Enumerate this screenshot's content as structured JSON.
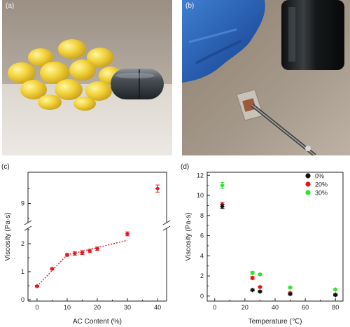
{
  "panels": {
    "a": {
      "label": "(a)"
    },
    "b": {
      "label": "(b)"
    },
    "c": {
      "label": "(c)"
    },
    "d": {
      "label": "(d)"
    }
  },
  "colors": {
    "red": "#e8141c",
    "black": "#111111",
    "green": "#2ee22e",
    "axis": "#222222"
  },
  "chart_data": [
    {
      "type": "scatter",
      "panel": "c",
      "xlabel": "AC Content (%)",
      "ylabel": "Viscosity (Pa·s)",
      "xlim": [
        -3,
        43
      ],
      "ylim_lower": [
        0,
        2.5
      ],
      "ylim_upper": [
        8.4,
        10
      ],
      "axis_break": true,
      "x_ticks": [
        "0",
        "10",
        "20",
        "30",
        "40"
      ],
      "y_ticks_lower": [
        "0",
        "1",
        "2"
      ],
      "y_ticks_upper": [
        "9"
      ],
      "series": [
        {
          "x": [
            0,
            5,
            10,
            12.5,
            15,
            17.5,
            20,
            30,
            40
          ],
          "y": [
            0.48,
            1.1,
            1.6,
            1.65,
            1.68,
            1.74,
            1.82,
            2.35,
            9.5
          ],
          "err": [
            0.03,
            0.04,
            0.05,
            0.06,
            0.07,
            0.06,
            0.06,
            0.07,
            0.12
          ]
        }
      ],
      "fit_lines": [
        {
          "x": [
            0,
            10
          ],
          "y": [
            0.48,
            1.6
          ]
        },
        {
          "x": [
            10,
            30
          ],
          "y": [
            1.6,
            2.12
          ]
        }
      ]
    },
    {
      "type": "scatter",
      "panel": "d",
      "xlabel": "Temperature (℃)",
      "ylabel": "Viscosity (Pa·s)",
      "xlim": [
        -5,
        85
      ],
      "ylim": [
        -0.5,
        12.3
      ],
      "x_ticks": [
        "0",
        "20",
        "40",
        "60",
        "80"
      ],
      "y_ticks": [
        "0",
        "2",
        "4",
        "6",
        "8",
        "10",
        "12"
      ],
      "legend_position": "top-right",
      "series": [
        {
          "name": "0%",
          "x": [
            5,
            25,
            30,
            50,
            80
          ],
          "y": [
            8.9,
            0.6,
            0.45,
            0.2,
            0.1
          ],
          "err": [
            0.2,
            0.1,
            0.1,
            0.1,
            0.1
          ]
        },
        {
          "name": "20%",
          "x": [
            5,
            25,
            30,
            50,
            80
          ],
          "y": [
            9.1,
            1.8,
            0.9,
            0.3,
            0.15
          ],
          "err": [
            0.2,
            0.15,
            0.1,
            0.1,
            0.1
          ]
        },
        {
          "name": "30%",
          "x": [
            5,
            25,
            30,
            50,
            80
          ],
          "y": [
            11.0,
            2.3,
            2.15,
            0.85,
            0.65
          ],
          "err": [
            0.3,
            0.15,
            0.1,
            0.1,
            0.1
          ]
        }
      ]
    }
  ]
}
